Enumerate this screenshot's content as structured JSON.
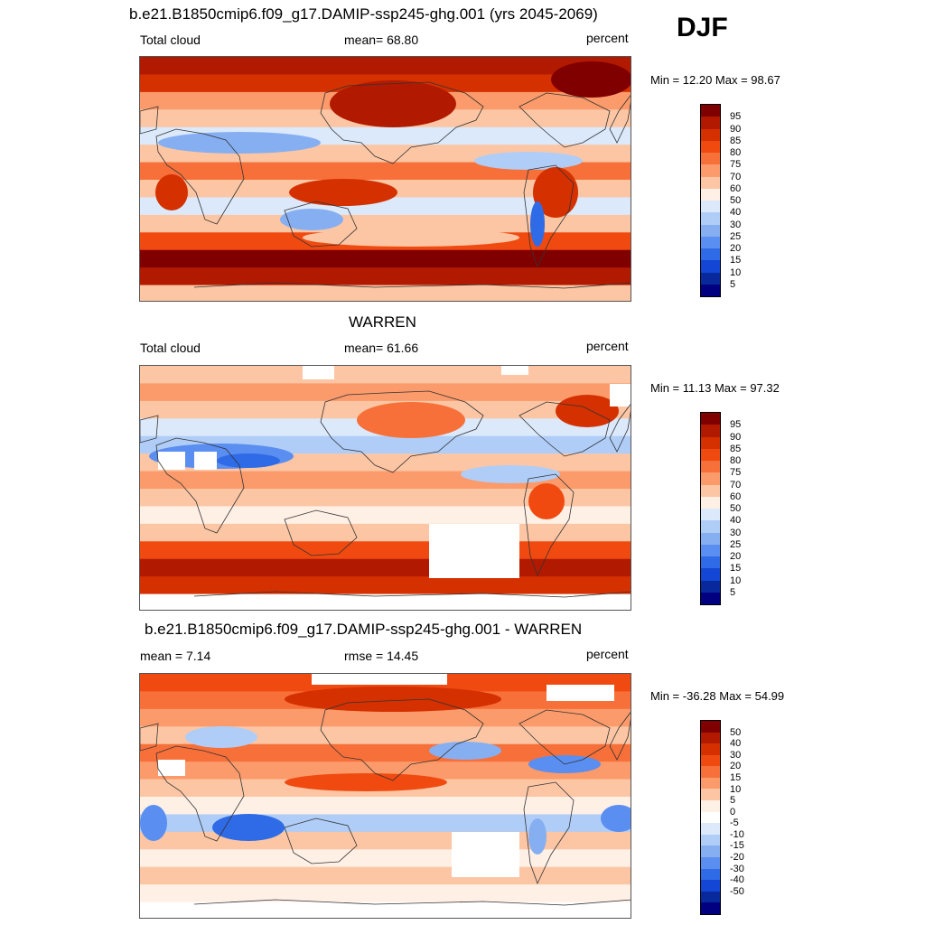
{
  "season": "DJF",
  "panels": [
    {
      "title": "b.e21.B1850cmip6.f09_g17.DAMIP-ssp245-ghg.001 (yrs 2045-2069)",
      "left": "Total cloud",
      "center": "mean=  68.80",
      "right": "percent",
      "minmax": "Min =  12.20 Max =  98.67"
    },
    {
      "title": "WARREN",
      "left": "Total cloud",
      "center": "mean=  61.66",
      "right": "percent",
      "minmax": "Min =  11.13 Max =  97.32"
    },
    {
      "title": "b.e21.B1850cmip6.f09_g17.DAMIP-ssp245-ghg.001 - WARREN",
      "left": "mean =   7.14",
      "center": "rmse =  14.45",
      "right": "percent",
      "minmax": "Min = -36.28 Max =  54.99"
    }
  ],
  "chart_data": [
    {
      "type": "heatmap",
      "title": "b.e21.B1850cmip6.f09_g17.DAMIP-ssp245-ghg.001 (yrs 2045-2069)",
      "variable": "Total cloud",
      "units": "percent",
      "mean": 68.8,
      "min": 12.2,
      "max": 98.67,
      "colorbar_levels": [
        "95",
        "90",
        "85",
        "80",
        "75",
        "70",
        "60",
        "50",
        "40",
        "30",
        "25",
        "20",
        "15",
        "10",
        "5"
      ]
    },
    {
      "type": "heatmap",
      "title": "WARREN",
      "variable": "Total cloud",
      "units": "percent",
      "mean": 61.66,
      "min": 11.13,
      "max": 97.32,
      "colorbar_levels": [
        "95",
        "90",
        "85",
        "80",
        "75",
        "70",
        "60",
        "50",
        "40",
        "30",
        "25",
        "20",
        "15",
        "10",
        "5"
      ]
    },
    {
      "type": "heatmap",
      "title": "b.e21.B1850cmip6.f09_g17.DAMIP-ssp245-ghg.001 - WARREN",
      "units": "percent",
      "mean": 7.14,
      "rmse": 14.45,
      "min": -36.28,
      "max": 54.99,
      "colorbar_levels": [
        "50",
        "40",
        "30",
        "20",
        "15",
        "10",
        "5",
        "0",
        "-5",
        "-10",
        "-15",
        "-20",
        "-30",
        "-40",
        "-50"
      ]
    }
  ],
  "colors": {
    "abs_scale": [
      "#800000",
      "#b21a00",
      "#d43000",
      "#f04a10",
      "#f7703a",
      "#fb9a6a",
      "#fcc6a4",
      "#fff0e6",
      "#dbe9fb",
      "#b0cdf7",
      "#86aff2",
      "#5a8ef0",
      "#2f6be6",
      "#1346d4",
      "#07299c",
      "#000080"
    ],
    "diff_scale": [
      "#800000",
      "#b21a00",
      "#d43000",
      "#f04a10",
      "#f7703a",
      "#fb9a6a",
      "#fcc6a4",
      "#fff0e6",
      "#ffffff",
      "#dbe9fb",
      "#b0cdf7",
      "#86aff2",
      "#5a8ef0",
      "#2f6be6",
      "#1346d4",
      "#07299c",
      "#000080"
    ]
  }
}
